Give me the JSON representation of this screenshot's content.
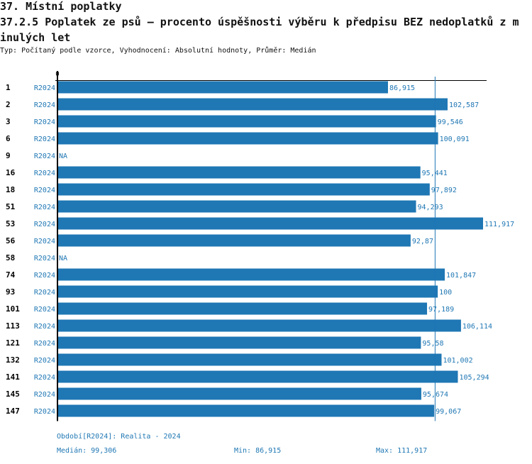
{
  "header": {
    "title": "37. Místní poplatky",
    "subtitle": "37.2.5 Poplatek ze psů – procento úspěšnosti výběru k předpisu BEZ nedoplatků z minulých let",
    "meta": "Typ: Počítaný podle vzorce, Vyhodnocení: Absolutní hodnoty, Průměr: Medián"
  },
  "chart_data": {
    "type": "bar",
    "orientation": "horizontal",
    "axis_zero_label": "0",
    "bar_color": "#1f77b4",
    "rows": [
      {
        "id": "1",
        "period": "R2024",
        "value": 86.915,
        "label": "86,915"
      },
      {
        "id": "2",
        "period": "R2024",
        "value": 102.587,
        "label": "102,587"
      },
      {
        "id": "3",
        "period": "R2024",
        "value": 99.546,
        "label": "99,546"
      },
      {
        "id": "6",
        "period": "R2024",
        "value": 100.091,
        "label": "100,091"
      },
      {
        "id": "9",
        "period": "R2024",
        "value": null,
        "label": "NA"
      },
      {
        "id": "16",
        "period": "R2024",
        "value": 95.441,
        "label": "95,441"
      },
      {
        "id": "18",
        "period": "R2024",
        "value": 97.892,
        "label": "97,892"
      },
      {
        "id": "51",
        "period": "R2024",
        "value": 94.293,
        "label": "94,293"
      },
      {
        "id": "53",
        "period": "R2024",
        "value": 111.917,
        "label": "111,917"
      },
      {
        "id": "56",
        "period": "R2024",
        "value": 92.87,
        "label": "92,87"
      },
      {
        "id": "58",
        "period": "R2024",
        "value": null,
        "label": "NA"
      },
      {
        "id": "74",
        "period": "R2024",
        "value": 101.847,
        "label": "101,847"
      },
      {
        "id": "93",
        "period": "R2024",
        "value": 100,
        "label": "100"
      },
      {
        "id": "101",
        "period": "R2024",
        "value": 97.189,
        "label": "97,189"
      },
      {
        "id": "113",
        "period": "R2024",
        "value": 106.114,
        "label": "106,114"
      },
      {
        "id": "121",
        "period": "R2024",
        "value": 95.58,
        "label": "95,58"
      },
      {
        "id": "132",
        "period": "R2024",
        "value": 101.002,
        "label": "101,002"
      },
      {
        "id": "141",
        "period": "R2024",
        "value": 105.294,
        "label": "105,294"
      },
      {
        "id": "145",
        "period": "R2024",
        "value": 95.674,
        "label": "95,674"
      },
      {
        "id": "147",
        "period": "R2024",
        "value": 99.067,
        "label": "99,067"
      }
    ],
    "median": 99.306,
    "xmax": 111.917
  },
  "footer": {
    "period_note": "Období[R2024]: Realita - 2024",
    "median": "Medián: 99,306",
    "min": "Min: 86,915",
    "max": "Max: 111,917"
  }
}
